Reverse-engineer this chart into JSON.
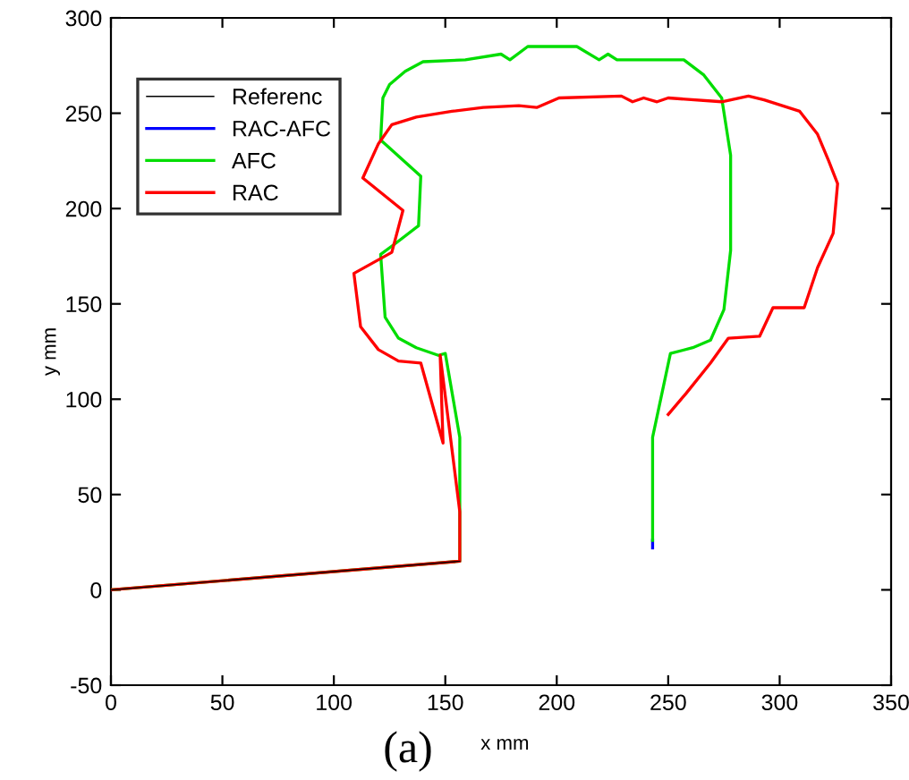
{
  "chart_data": {
    "type": "line",
    "xlabel": "x mm",
    "ylabel": "y mm",
    "annotations": [
      "(a)"
    ],
    "xlim": [
      0,
      350
    ],
    "ylim": [
      -50,
      300
    ],
    "xticks": [
      0,
      50,
      100,
      150,
      200,
      250,
      300,
      350
    ],
    "yticks": [
      -50,
      0,
      50,
      100,
      150,
      200,
      250,
      300
    ],
    "grid": false,
    "legend": "top left",
    "marker": "none",
    "line_style": "solid",
    "series": [
      {
        "name": "Referenc",
        "color": "#000000",
        "x": [
          0,
          156.5
        ],
        "values": [
          0,
          15
        ]
      },
      {
        "name": "RAC-AFC",
        "color": "#0000ff",
        "x": [
          243,
          243
        ],
        "values": [
          26,
          22
        ]
      },
      {
        "name": "AFC",
        "color": "#00dd00",
        "x": [
          0,
          156.5,
          156.5,
          150,
          146.9,
          137,
          129,
          123,
          121,
          128,
          138,
          139,
          121,
          122,
          125,
          132,
          140,
          159,
          175,
          179,
          187,
          209,
          219,
          223,
          227,
          239,
          257,
          266,
          274,
          278,
          278,
          275,
          269,
          261,
          251,
          243,
          243
        ],
        "values": [
          0,
          15,
          80,
          124,
          123,
          127,
          132,
          143,
          176,
          182,
          191,
          217,
          236,
          258,
          265,
          272,
          277,
          278,
          281,
          278,
          285,
          285,
          278,
          281,
          278,
          278,
          278,
          270,
          258,
          228,
          178,
          147,
          131,
          127,
          124,
          80,
          26
        ]
      },
      {
        "name": "RAC",
        "color": "#ff0000",
        "x": [
          0,
          156.5,
          156.5,
          147.7,
          149,
          139,
          129,
          120,
          112,
          109,
          126,
          131,
          113,
          120,
          126,
          137,
          153,
          167,
          183,
          191,
          201,
          229,
          234,
          239,
          245,
          250,
          274,
          286,
          293,
          309,
          317,
          322,
          326,
          324,
          317,
          311,
          297,
          291,
          277,
          269,
          258,
          250
        ],
        "values": [
          0,
          15,
          41,
          123,
          77,
          119,
          120,
          126,
          138,
          166,
          177,
          199,
          216,
          234,
          244,
          248,
          251,
          253,
          254,
          253,
          258,
          259,
          256,
          258,
          256,
          258,
          256,
          259,
          257,
          251,
          239,
          225,
          213,
          187,
          169,
          148,
          148,
          133,
          132,
          119,
          103,
          92
        ]
      }
    ]
  }
}
